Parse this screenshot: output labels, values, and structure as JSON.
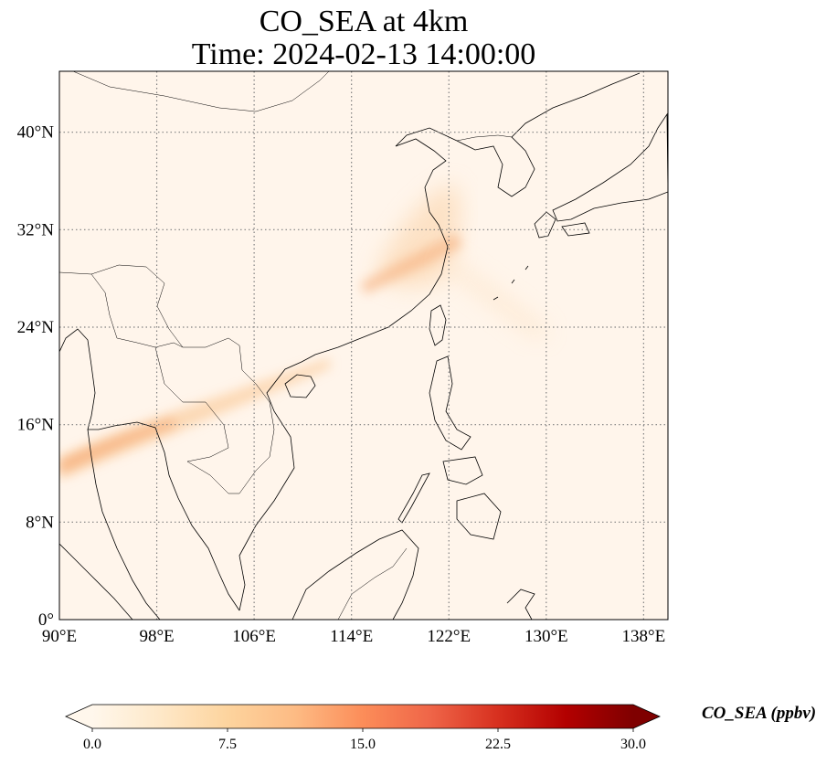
{
  "title": {
    "line1": "CO_SEA at 4km",
    "line2": "Time: 2024-02-13 14:00:00"
  },
  "map": {
    "lon_range": [
      90,
      140
    ],
    "lat_range": [
      0,
      45
    ],
    "lon_ticks": [
      {
        "value": 90,
        "label": "90°E"
      },
      {
        "value": 98,
        "label": "98°E"
      },
      {
        "value": 106,
        "label": "106°E"
      },
      {
        "value": 114,
        "label": "114°E"
      },
      {
        "value": 122,
        "label": "122°E"
      },
      {
        "value": 130,
        "label": "130°E"
      },
      {
        "value": 138,
        "label": "138°E"
      }
    ],
    "lat_ticks": [
      {
        "value": 0,
        "label": "0°"
      },
      {
        "value": 8,
        "label": "8°N"
      },
      {
        "value": 16,
        "label": "16°N"
      },
      {
        "value": 24,
        "label": "24°N"
      },
      {
        "value": 32,
        "label": "32°N"
      },
      {
        "value": 40,
        "label": "40°N"
      }
    ],
    "gridlines": true,
    "background_color": "#fff5eb",
    "coastline_color": "#000000"
  },
  "colorbar": {
    "label": "CO_SEA (ppbv)",
    "colormap": "OrRd",
    "range": [
      0,
      30
    ],
    "extend": "both",
    "ticks": [
      {
        "value": 0,
        "label": "0.0"
      },
      {
        "value": 7.5,
        "label": "7.5"
      },
      {
        "value": 15,
        "label": "15.0"
      },
      {
        "value": 22.5,
        "label": "22.5"
      },
      {
        "value": 30,
        "label": "30.0"
      }
    ],
    "colors": [
      "#fff7ec",
      "#fee8c8",
      "#fdd49e",
      "#fdbb84",
      "#fc8d59",
      "#ef6548",
      "#d7301f",
      "#b30000",
      "#7f0000"
    ]
  }
}
